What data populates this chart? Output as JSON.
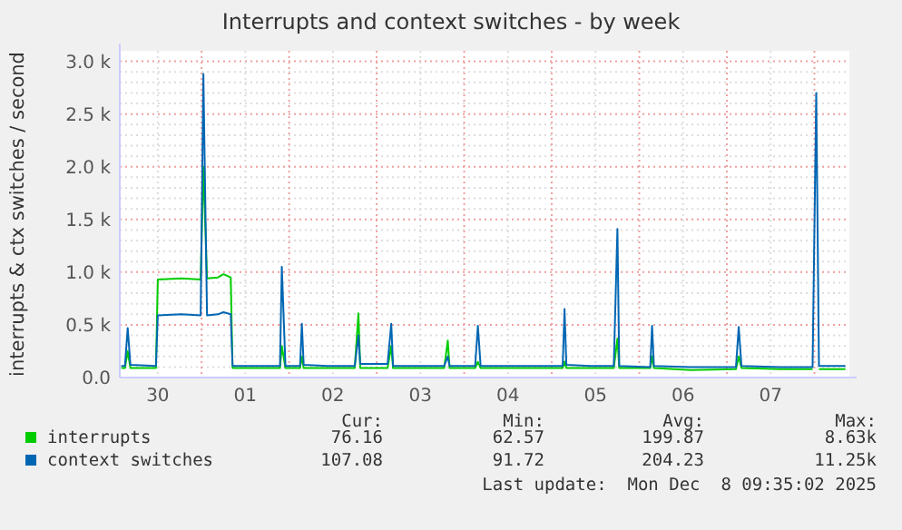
{
  "chart_data": {
    "type": "line",
    "title": "Interrupts and context switches - by week",
    "ylabel": "interrupts & ctx switches / second",
    "x": [
      "2025-11-30T02:00",
      "2025-11-30T03:00",
      "2025-11-30T03:45",
      "2025-11-30T04:30",
      "2025-11-30T11:30",
      "2025-11-30T12:00",
      "2025-11-30T18:30",
      "2025-11-30T23:45",
      "2025-12-01T00:30",
      "2025-12-01T01:30",
      "2025-12-01T04:30",
      "2025-12-01T06:00",
      "2025-12-01T08:00",
      "2025-12-01T08:30",
      "2025-12-01T14:30",
      "2025-12-01T21:30",
      "2025-12-01T22:00",
      "2025-12-01T23:00",
      "2025-12-02T03:00",
      "2025-12-02T03:30",
      "2025-12-02T04:00",
      "2025-12-02T10:30",
      "2025-12-02T18:00",
      "2025-12-02T19:00",
      "2025-12-02T19:30",
      "2025-12-03T03:00",
      "2025-12-03T04:00",
      "2025-12-03T04:30",
      "2025-12-03T11:00",
      "2025-12-03T18:30",
      "2025-12-03T19:30",
      "2025-12-03T20:00",
      "2025-12-04T03:00",
      "2025-12-04T03:45",
      "2025-12-04T04:30",
      "2025-12-04T14:30",
      "2025-12-05T03:00",
      "2025-12-05T03:30",
      "2025-12-05T04:00",
      "2025-12-05T10:30",
      "2025-12-05T17:00",
      "2025-12-05T18:00",
      "2025-12-05T18:30",
      "2025-12-06T03:00",
      "2025-12-06T03:30",
      "2025-12-06T04:00",
      "2025-12-06T14:00",
      "2025-12-07T02:30",
      "2025-12-07T03:15",
      "2025-12-07T04:00",
      "2025-12-07T14:30",
      "2025-12-07T23:30",
      "2025-12-08T00:30",
      "2025-12-08T01:15",
      "2025-12-08T08:30"
    ],
    "series": [
      {
        "name": "interrupts",
        "color": "#00cc00",
        "values": [
          90,
          90,
          250,
          90,
          90,
          930,
          940,
          930,
          2000,
          940,
          950,
          980,
          950,
          90,
          90,
          90,
          300,
          90,
          90,
          200,
          90,
          90,
          90,
          610,
          90,
          90,
          300,
          90,
          90,
          90,
          350,
          90,
          90,
          150,
          90,
          90,
          90,
          150,
          90,
          90,
          90,
          370,
          90,
          90,
          200,
          90,
          70,
          80,
          200,
          90,
          80,
          80,
          null,
          80,
          80
        ]
      },
      {
        "name": "context switches",
        "color": "#0066b3",
        "values": [
          110,
          110,
          470,
          120,
          110,
          590,
          600,
          590,
          2880,
          590,
          600,
          620,
          600,
          110,
          110,
          110,
          1050,
          110,
          110,
          510,
          120,
          110,
          110,
          400,
          130,
          130,
          510,
          110,
          110,
          110,
          200,
          110,
          110,
          490,
          110,
          110,
          110,
          650,
          120,
          110,
          110,
          1410,
          110,
          100,
          490,
          110,
          100,
          100,
          480,
          110,
          100,
          100,
          2700,
          110,
          110
        ]
      }
    ],
    "xlim": [
      "2025-11-30T01:35",
      "2025-12-08T09:35"
    ],
    "xticks": [
      {
        "value": "2025-11-30T12:00",
        "label": "30"
      },
      {
        "value": "2025-12-01T00:00",
        "label": null
      },
      {
        "value": "2025-12-01T12:00",
        "label": "01"
      },
      {
        "value": "2025-12-02T00:00",
        "label": null
      },
      {
        "value": "2025-12-02T12:00",
        "label": "02"
      },
      {
        "value": "2025-12-03T00:00",
        "label": null
      },
      {
        "value": "2025-12-03T12:00",
        "label": "03"
      },
      {
        "value": "2025-12-04T00:00",
        "label": null
      },
      {
        "value": "2025-12-04T12:00",
        "label": "04"
      },
      {
        "value": "2025-12-05T00:00",
        "label": null
      },
      {
        "value": "2025-12-05T12:00",
        "label": "05"
      },
      {
        "value": "2025-12-06T00:00",
        "label": null
      },
      {
        "value": "2025-12-06T12:00",
        "label": "06"
      },
      {
        "value": "2025-12-07T00:00",
        "label": null
      },
      {
        "value": "2025-12-07T12:00",
        "label": "07"
      },
      {
        "value": "2025-12-08T00:00",
        "label": null
      }
    ],
    "ylim": [
      0,
      3100
    ],
    "yticks": [
      {
        "value": 0,
        "label": "0.0"
      },
      {
        "value": 100,
        "label": null
      },
      {
        "value": 200,
        "label": null
      },
      {
        "value": 300,
        "label": null
      },
      {
        "value": 400,
        "label": null
      },
      {
        "value": 500,
        "label": "0.5 k"
      },
      {
        "value": 600,
        "label": null
      },
      {
        "value": 700,
        "label": null
      },
      {
        "value": 800,
        "label": null
      },
      {
        "value": 900,
        "label": null
      },
      {
        "value": 1000,
        "label": "1.0 k"
      },
      {
        "value": 1100,
        "label": null
      },
      {
        "value": 1200,
        "label": null
      },
      {
        "value": 1300,
        "label": null
      },
      {
        "value": 1400,
        "label": null
      },
      {
        "value": 1500,
        "label": "1.5 k"
      },
      {
        "value": 1600,
        "label": null
      },
      {
        "value": 1700,
        "label": null
      },
      {
        "value": 1800,
        "label": null
      },
      {
        "value": 1900,
        "label": null
      },
      {
        "value": 2000,
        "label": "2.0 k"
      },
      {
        "value": 2100,
        "label": null
      },
      {
        "value": 2200,
        "label": null
      },
      {
        "value": 2300,
        "label": null
      },
      {
        "value": 2400,
        "label": null
      },
      {
        "value": 2500,
        "label": "2.5 k"
      },
      {
        "value": 2600,
        "label": null
      },
      {
        "value": 2700,
        "label": null
      },
      {
        "value": 2800,
        "label": null
      },
      {
        "value": 2900,
        "label": null
      },
      {
        "value": 3000,
        "label": "3.0 k"
      }
    ],
    "grid": true,
    "legend": "bottom",
    "line_style": "solid",
    "annotations": [
      "Cur:",
      "Min:",
      "Avg:",
      "Max:",
      "76.16",
      "62.57",
      "199.87",
      "8.63k",
      "107.08",
      "91.72",
      "204.23",
      "11.25k",
      "Last update:  Mon Dec  8 09:35:02 2025"
    ]
  }
}
